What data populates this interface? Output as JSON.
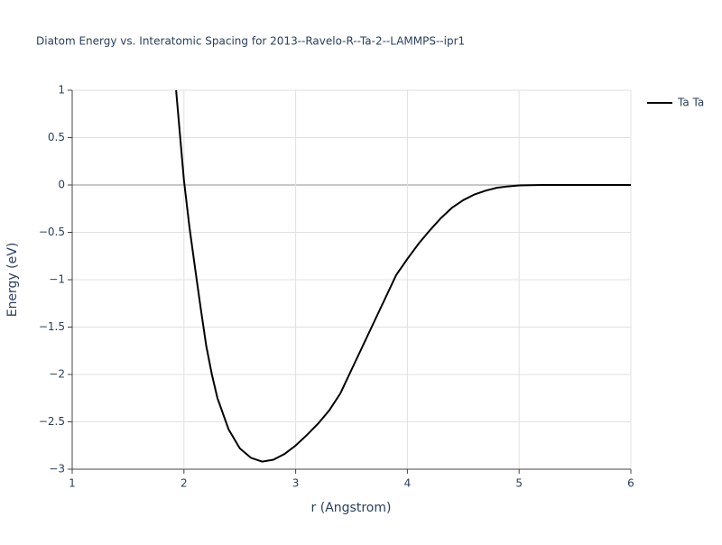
{
  "chart_data": {
    "type": "line",
    "title": "Diatom Energy vs. Interatomic Spacing for 2013--Ravelo-R--Ta-2--LAMMPS--ipr1",
    "x_label": "r (Angstrom)",
    "y_label": "Energy (eV)",
    "x": [
      1.93,
      2.0,
      2.05,
      2.1,
      2.15,
      2.2,
      2.25,
      2.3,
      2.4,
      2.5,
      2.6,
      2.7,
      2.8,
      2.9,
      3.0,
      3.1,
      3.2,
      3.3,
      3.4,
      3.5,
      3.6,
      3.7,
      3.8,
      3.9,
      4.0,
      4.1,
      4.2,
      4.3,
      4.4,
      4.5,
      4.6,
      4.7,
      4.8,
      4.9,
      5.0,
      5.2,
      5.5,
      6.0
    ],
    "series": [
      {
        "name": "Ta Ta",
        "color": "#000000",
        "values": [
          1.0,
          0.05,
          -0.45,
          -0.88,
          -1.3,
          -1.7,
          -2.0,
          -2.25,
          -2.58,
          -2.78,
          -2.88,
          -2.92,
          -2.9,
          -2.84,
          -2.75,
          -2.64,
          -2.52,
          -2.38,
          -2.2,
          -1.95,
          -1.7,
          -1.45,
          -1.2,
          -0.95,
          -0.78,
          -0.62,
          -0.48,
          -0.35,
          -0.24,
          -0.16,
          -0.1,
          -0.06,
          -0.03,
          -0.015,
          -0.005,
          0,
          0,
          0
        ]
      }
    ],
    "xlim": [
      1,
      6
    ],
    "xticks": [
      1,
      2,
      3,
      4,
      5,
      6
    ],
    "ylim": [
      -3,
      1
    ],
    "yticks": [
      {
        "value": -3,
        "label": "−3"
      },
      {
        "value": -2.5,
        "label": "−2.5"
      },
      {
        "value": -2,
        "label": "−2"
      },
      {
        "value": -1.5,
        "label": "−1.5"
      },
      {
        "value": -1,
        "label": "−1"
      },
      {
        "value": -0.5,
        "label": "−0.5"
      },
      0,
      0.5,
      1
    ],
    "grid": true,
    "legend": "top-right"
  }
}
